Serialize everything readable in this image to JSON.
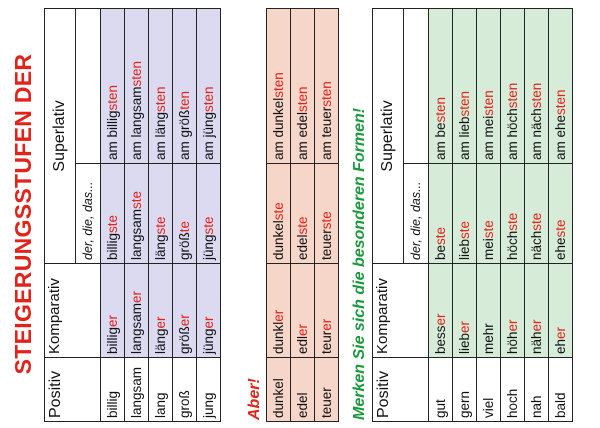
{
  "title": "STEIGERUNGSSTUFEN DER ADJEKTIVE",
  "headers": {
    "positiv": "Positiv",
    "komparativ": "Komparativ",
    "superlativ": "Superlativ",
    "article_hint": "der, die, das..."
  },
  "regular": [
    {
      "pos": "billig",
      "komp": [
        "billig",
        "er"
      ],
      "sup1": [
        "billig",
        "ste"
      ],
      "sup2": [
        "am billig",
        "sten"
      ]
    },
    {
      "pos": "langsam",
      "komp": [
        "langsam",
        "er"
      ],
      "sup1": [
        "langsam",
        "ste"
      ],
      "sup2": [
        "am langsam",
        "sten"
      ]
    },
    {
      "pos": "lang",
      "komp": [
        "läng",
        "er"
      ],
      "sup1": [
        "läng",
        "ste"
      ],
      "sup2": [
        "am läng",
        "sten"
      ]
    },
    {
      "pos": "groß",
      "komp": [
        "größ",
        "er"
      ],
      "sup1": [
        "größ",
        "te"
      ],
      "sup2": [
        "am größ",
        "ten"
      ]
    },
    {
      "pos": "jung",
      "komp": [
        "jüng",
        "er"
      ],
      "sup1": [
        "jüng",
        "ste"
      ],
      "sup2": [
        "am jüng",
        "sten"
      ]
    }
  ],
  "aber_label": "Aber!",
  "aber": [
    {
      "pos": "dunkel",
      "komp": [
        "dunkl",
        "er"
      ],
      "sup1": [
        "dunkel",
        "ste"
      ],
      "sup2": [
        "am dunkel",
        "sten"
      ]
    },
    {
      "pos": "edel",
      "komp": [
        "edl",
        "er"
      ],
      "sup1": [
        "edel",
        "ste"
      ],
      "sup2": [
        "am edel",
        "sten"
      ]
    },
    {
      "pos": "teuer",
      "komp": [
        "teur",
        "er"
      ],
      "sup1": [
        "teuer",
        "ste"
      ],
      "sup2": [
        "am teuer",
        "sten"
      ]
    }
  ],
  "special_label": "Merken Sie sich die besonderen Formen!",
  "special": [
    {
      "pos": "gut",
      "komp": [
        "bess",
        "er"
      ],
      "sup1": [
        "be",
        "ste"
      ],
      "sup2": [
        "am be",
        "sten"
      ]
    },
    {
      "pos": "gern",
      "komp": [
        "lieb",
        "er"
      ],
      "sup1": [
        "lieb",
        "ste"
      ],
      "sup2": [
        "am lieb",
        "sten"
      ]
    },
    {
      "pos": "viel",
      "komp": [
        "mehr",
        ""
      ],
      "sup1": [
        "mei",
        "ste"
      ],
      "sup2": [
        "am mei",
        "sten"
      ]
    },
    {
      "pos": "hoch",
      "komp": [
        "höh",
        "er"
      ],
      "sup1": [
        "höch",
        "ste"
      ],
      "sup2": [
        "am höch",
        "sten"
      ]
    },
    {
      "pos": "nah",
      "komp": [
        "näh",
        "er"
      ],
      "sup1": [
        "näch",
        "ste"
      ],
      "sup2": [
        "am näch",
        "sten"
      ]
    },
    {
      "pos": "bald",
      "komp": [
        "eh",
        "er"
      ],
      "sup1": [
        "ehe",
        "ste"
      ],
      "sup2": [
        "am ehe",
        "sten"
      ]
    }
  ],
  "colors": {
    "accent_red": "#e2231a",
    "accent_green": "#1a9a3c",
    "blue_fill": "#dcdaf1",
    "salmon_fill": "#f6d6c8",
    "green_fill": "#d6ecd8"
  }
}
